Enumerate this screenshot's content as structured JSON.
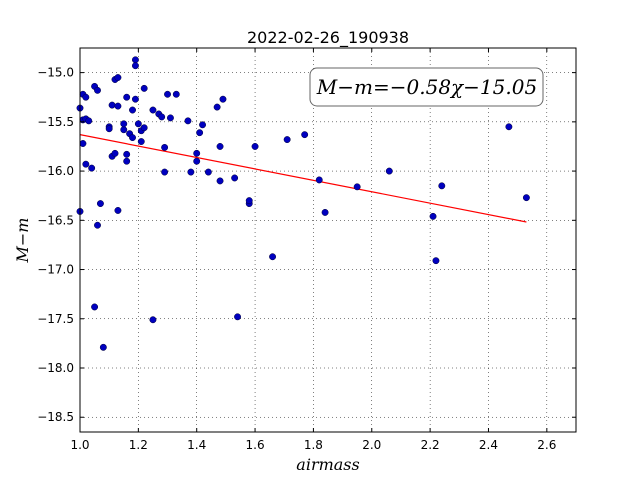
{
  "chart_data": {
    "type": "scatter",
    "title": "2022-02-26_190938",
    "xlabel": "airmass",
    "ylabel": "M−m",
    "xlim": [
      1.0,
      2.7
    ],
    "ylim": [
      -18.65,
      -14.75
    ],
    "xticks": [
      1.0,
      1.2,
      1.4,
      1.6,
      1.8,
      2.0,
      2.2,
      2.4,
      2.6
    ],
    "xtick_labels": [
      "1.0",
      "1.2",
      "1.4",
      "1.6",
      "1.8",
      "2.0",
      "2.2",
      "2.4",
      "2.6"
    ],
    "yticks": [
      -15.0,
      -15.5,
      -16.0,
      -16.5,
      -17.0,
      -17.5,
      -18.0,
      -18.5
    ],
    "ytick_labels": [
      "−15.0",
      "−15.5",
      "−16.0",
      "−16.5",
      "−17.0",
      "−17.5",
      "−18.0",
      "−18.5"
    ],
    "grid": true,
    "annotation": {
      "text": "M−m=−0.58χ−15.05",
      "position": "top-right"
    },
    "fit_line": {
      "slope": -0.58,
      "intercept": -15.05,
      "x_range": [
        1.0,
        2.53
      ],
      "color": "#ff0000"
    },
    "marker_color": "#0000bf",
    "points": [
      {
        "x": 1.0,
        "y": -15.36
      },
      {
        "x": 1.0,
        "y": -16.41
      },
      {
        "x": 1.01,
        "y": -15.22
      },
      {
        "x": 1.01,
        "y": -15.48
      },
      {
        "x": 1.01,
        "y": -15.72
      },
      {
        "x": 1.02,
        "y": -15.25
      },
      {
        "x": 1.02,
        "y": -15.47
      },
      {
        "x": 1.02,
        "y": -15.93
      },
      {
        "x": 1.03,
        "y": -15.49
      },
      {
        "x": 1.04,
        "y": -15.97
      },
      {
        "x": 1.05,
        "y": -15.14
      },
      {
        "x": 1.05,
        "y": -17.38
      },
      {
        "x": 1.06,
        "y": -15.18
      },
      {
        "x": 1.06,
        "y": -16.55
      },
      {
        "x": 1.07,
        "y": -16.33
      },
      {
        "x": 1.08,
        "y": -17.79
      },
      {
        "x": 1.1,
        "y": -15.55
      },
      {
        "x": 1.1,
        "y": -15.57
      },
      {
        "x": 1.11,
        "y": -15.33
      },
      {
        "x": 1.11,
        "y": -15.85
      },
      {
        "x": 1.12,
        "y": -15.82
      },
      {
        "x": 1.12,
        "y": -15.07
      },
      {
        "x": 1.13,
        "y": -15.05
      },
      {
        "x": 1.13,
        "y": -15.34
      },
      {
        "x": 1.13,
        "y": -16.4
      },
      {
        "x": 1.15,
        "y": -15.58
      },
      {
        "x": 1.15,
        "y": -15.52
      },
      {
        "x": 1.16,
        "y": -15.83
      },
      {
        "x": 1.16,
        "y": -15.9
      },
      {
        "x": 1.16,
        "y": -15.25
      },
      {
        "x": 1.17,
        "y": -15.62
      },
      {
        "x": 1.18,
        "y": -15.38
      },
      {
        "x": 1.18,
        "y": -15.66
      },
      {
        "x": 1.19,
        "y": -15.27
      },
      {
        "x": 1.19,
        "y": -14.87
      },
      {
        "x": 1.19,
        "y": -14.93
      },
      {
        "x": 1.2,
        "y": -15.52
      },
      {
        "x": 1.21,
        "y": -15.7
      },
      {
        "x": 1.21,
        "y": -15.59
      },
      {
        "x": 1.22,
        "y": -15.16
      },
      {
        "x": 1.22,
        "y": -15.56
      },
      {
        "x": 1.25,
        "y": -15.38
      },
      {
        "x": 1.25,
        "y": -17.51
      },
      {
        "x": 1.27,
        "y": -15.42
      },
      {
        "x": 1.28,
        "y": -15.45
      },
      {
        "x": 1.29,
        "y": -15.76
      },
      {
        "x": 1.29,
        "y": -16.01
      },
      {
        "x": 1.3,
        "y": -15.22
      },
      {
        "x": 1.31,
        "y": -15.46
      },
      {
        "x": 1.33,
        "y": -15.22
      },
      {
        "x": 1.37,
        "y": -15.49
      },
      {
        "x": 1.38,
        "y": -16.01
      },
      {
        "x": 1.4,
        "y": -15.82
      },
      {
        "x": 1.4,
        "y": -15.9
      },
      {
        "x": 1.41,
        "y": -15.61
      },
      {
        "x": 1.42,
        "y": -15.53
      },
      {
        "x": 1.44,
        "y": -16.01
      },
      {
        "x": 1.47,
        "y": -15.35
      },
      {
        "x": 1.48,
        "y": -15.75
      },
      {
        "x": 1.48,
        "y": -16.1
      },
      {
        "x": 1.49,
        "y": -15.27
      },
      {
        "x": 1.53,
        "y": -16.07
      },
      {
        "x": 1.54,
        "y": -17.48
      },
      {
        "x": 1.58,
        "y": -16.33
      },
      {
        "x": 1.58,
        "y": -16.3
      },
      {
        "x": 1.6,
        "y": -15.75
      },
      {
        "x": 1.66,
        "y": -16.87
      },
      {
        "x": 1.71,
        "y": -15.68
      },
      {
        "x": 1.77,
        "y": -15.63
      },
      {
        "x": 1.82,
        "y": -16.09
      },
      {
        "x": 1.84,
        "y": -16.42
      },
      {
        "x": 1.95,
        "y": -16.16
      },
      {
        "x": 2.06,
        "y": -16.0
      },
      {
        "x": 2.21,
        "y": -16.46
      },
      {
        "x": 2.22,
        "y": -16.91
      },
      {
        "x": 2.24,
        "y": -16.15
      },
      {
        "x": 2.47,
        "y": -15.55
      },
      {
        "x": 2.53,
        "y": -16.27
      }
    ]
  }
}
